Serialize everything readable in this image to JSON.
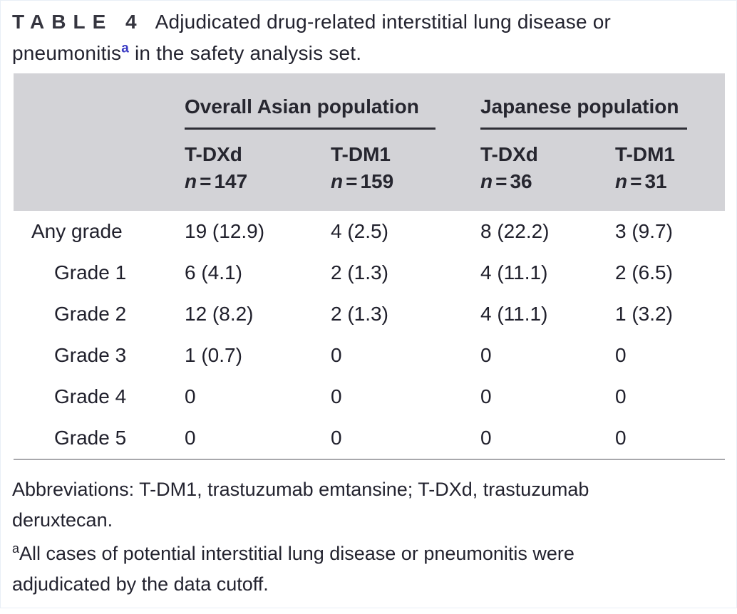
{
  "title": {
    "label": "TABLE 4",
    "line1": "Adjudicated drug-related interstitial lung disease or",
    "line2_pre": "pneumonitis",
    "sup": "a",
    "line2_post": " in the safety analysis set."
  },
  "table": {
    "groups": [
      {
        "label": "Overall Asian population"
      },
      {
        "label": "Japanese population"
      }
    ],
    "columns": [
      {
        "drug": "T-DXd",
        "n_var": "n",
        "equals": "=",
        "count": "147"
      },
      {
        "drug": "T-DM1",
        "n_var": "n",
        "equals": "=",
        "count": "159"
      },
      {
        "drug": "T-DXd",
        "n_var": "n",
        "equals": "=",
        "count": "36"
      },
      {
        "drug": "T-DM1",
        "n_var": "n",
        "equals": "=",
        "count": "31"
      }
    ],
    "rows": [
      {
        "label": "Any grade",
        "values": [
          "19 (12.9)",
          "4 (2.5)",
          "8 (22.2)",
          "3 (9.7)"
        ]
      },
      {
        "label": "Grade 1",
        "values": [
          "6 (4.1)",
          "2 (1.3)",
          "4 (11.1)",
          "2 (6.5)"
        ]
      },
      {
        "label": "Grade 2",
        "values": [
          "12 (8.2)",
          "2 (1.3)",
          "4 (11.1)",
          "1 (3.2)"
        ]
      },
      {
        "label": "Grade 3",
        "values": [
          "1 (0.7)",
          "0",
          "0",
          "0"
        ]
      },
      {
        "label": "Grade 4",
        "values": [
          "0",
          "0",
          "0",
          "0"
        ]
      },
      {
        "label": "Grade 5",
        "values": [
          "0",
          "0",
          "0",
          "0"
        ]
      }
    ]
  },
  "footnotes": {
    "abbr_line1": "Abbreviations: T-DM1, trastuzumab emtansine; T-DXd, trastuzumab",
    "abbr_line2": "deruxtecan.",
    "note_sup": "a",
    "note_line1": "All cases of potential interstitial lung disease or pneumonitis were",
    "note_line2": "adjudicated by the data cutoff."
  },
  "colors": {
    "header_background": "#d3d3d7",
    "text": "#23232f",
    "title_superscript_blue": "#3b3bc4",
    "group_underline": "#2e2e36",
    "table_bottom_rule": "#a8a8ac",
    "page_background": "#ffffff"
  }
}
